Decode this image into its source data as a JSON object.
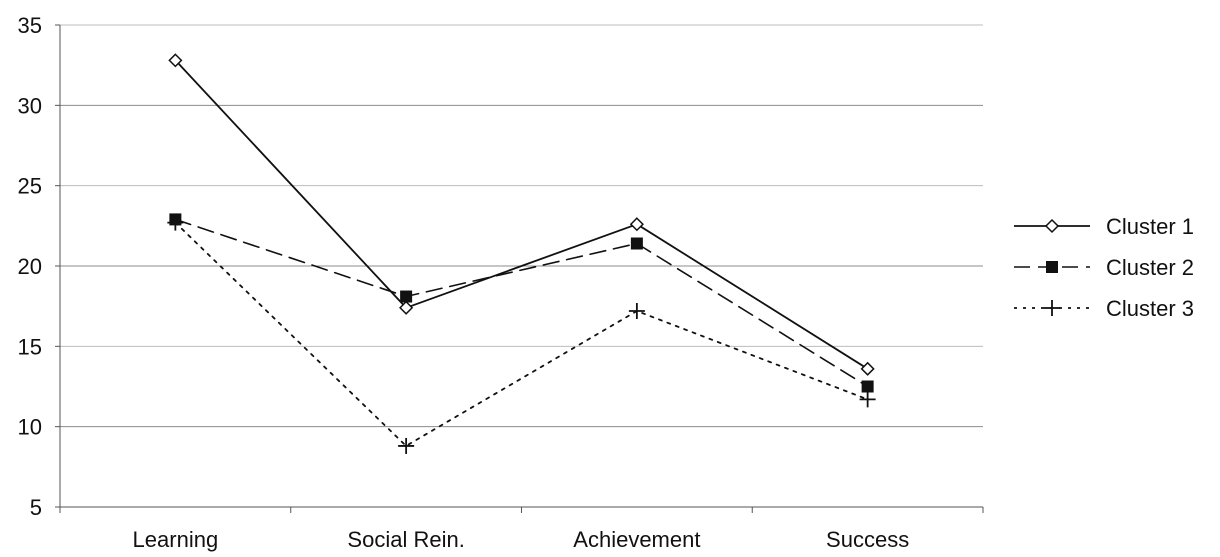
{
  "chart_data": {
    "type": "line",
    "categories": [
      "Learning",
      "Social Rein.",
      "Achievement",
      "Success"
    ],
    "series": [
      {
        "name": "Cluster 1",
        "values": [
          32.8,
          17.4,
          22.6,
          13.6
        ],
        "marker": "diamond-open",
        "dash": "solid",
        "color": "#111111"
      },
      {
        "name": "Cluster 2",
        "values": [
          22.9,
          18.1,
          21.4,
          12.5
        ],
        "marker": "square-filled",
        "dash": "dashed",
        "color": "#111111"
      },
      {
        "name": "Cluster 3",
        "values": [
          22.7,
          8.8,
          17.2,
          11.7
        ],
        "marker": "plus",
        "dash": "dotted",
        "color": "#111111"
      }
    ],
    "title": "",
    "xlabel": "",
    "ylabel": "",
    "ylim": [
      5,
      35
    ],
    "yticks": [
      5,
      10,
      15,
      20,
      25,
      30,
      35
    ],
    "grid": true,
    "legend_position": "right"
  }
}
